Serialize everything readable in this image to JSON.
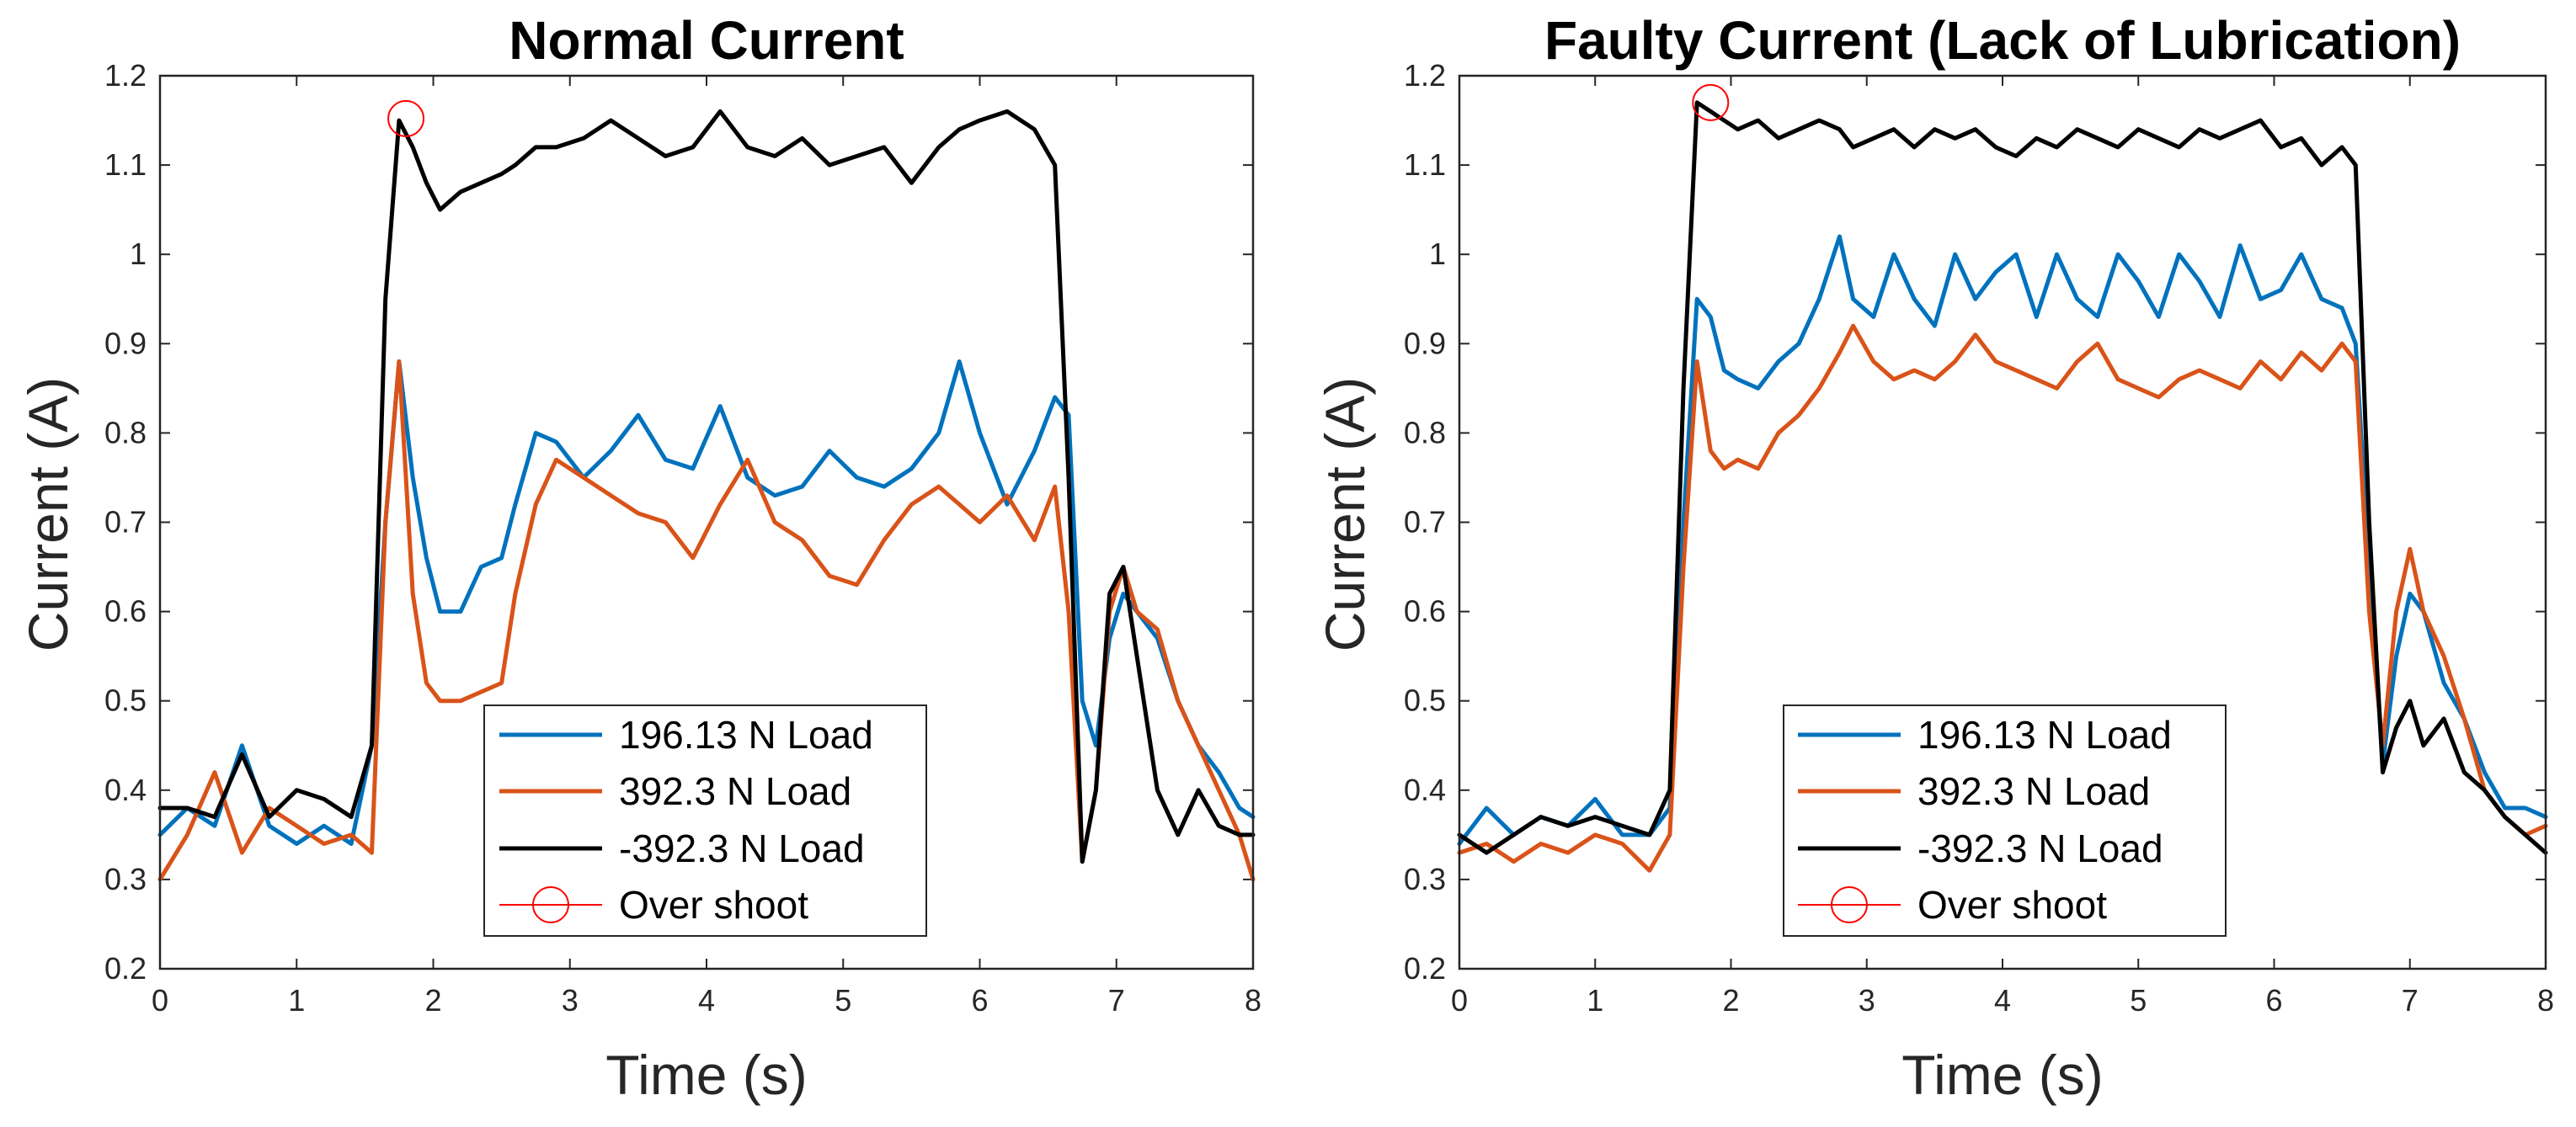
{
  "chart_data": [
    {
      "type": "line",
      "title": "Normal Current",
      "xlabel": "Time (s)",
      "ylabel": "Current (A)",
      "xlim": [
        0,
        8
      ],
      "ylim": [
        0.2,
        1.2
      ],
      "xticks": [
        "0",
        "1",
        "2",
        "3",
        "4",
        "5",
        "6",
        "7",
        "8"
      ],
      "yticks": [
        "0.2",
        "0.3",
        "0.4",
        "0.5",
        "0.6",
        "0.7",
        "0.8",
        "0.9",
        "1",
        "1.1",
        "1.2"
      ],
      "legend": [
        "196.13 N Load",
        "392.3 N Load",
        "-392.3 N Load",
        "Over shoot"
      ],
      "legend_position": "bottom-center",
      "series": [
        {
          "name": "196.13 N Load",
          "color": "#0072BD",
          "x": [
            0,
            0.2,
            0.4,
            0.6,
            0.8,
            1.0,
            1.2,
            1.4,
            1.55,
            1.65,
            1.75,
            1.85,
            1.95,
            2.05,
            2.2,
            2.35,
            2.5,
            2.6,
            2.75,
            2.9,
            3.1,
            3.3,
            3.5,
            3.7,
            3.9,
            4.1,
            4.3,
            4.5,
            4.7,
            4.9,
            5.1,
            5.3,
            5.5,
            5.7,
            5.85,
            6.0,
            6.2,
            6.4,
            6.55,
            6.65,
            6.75,
            6.85,
            6.95,
            7.05,
            7.15,
            7.3,
            7.45,
            7.6,
            7.75,
            7.9,
            8.0
          ],
          "values": [
            0.35,
            0.38,
            0.36,
            0.45,
            0.36,
            0.34,
            0.36,
            0.34,
            0.45,
            0.7,
            0.88,
            0.75,
            0.66,
            0.6,
            0.6,
            0.65,
            0.66,
            0.72,
            0.8,
            0.79,
            0.75,
            0.78,
            0.82,
            0.77,
            0.76,
            0.83,
            0.75,
            0.73,
            0.74,
            0.78,
            0.75,
            0.74,
            0.76,
            0.8,
            0.88,
            0.8,
            0.72,
            0.78,
            0.84,
            0.82,
            0.5,
            0.45,
            0.57,
            0.62,
            0.6,
            0.57,
            0.5,
            0.45,
            0.42,
            0.38,
            0.37
          ]
        },
        {
          "name": "392.3 N Load",
          "color": "#D95319",
          "x": [
            0,
            0.2,
            0.4,
            0.6,
            0.8,
            1.0,
            1.2,
            1.4,
            1.55,
            1.65,
            1.75,
            1.85,
            1.95,
            2.05,
            2.2,
            2.35,
            2.5,
            2.6,
            2.75,
            2.9,
            3.1,
            3.3,
            3.5,
            3.7,
            3.9,
            4.1,
            4.3,
            4.5,
            4.7,
            4.9,
            5.1,
            5.3,
            5.5,
            5.7,
            5.85,
            6.0,
            6.2,
            6.4,
            6.55,
            6.65,
            6.75,
            6.85,
            6.95,
            7.05,
            7.15,
            7.3,
            7.45,
            7.6,
            7.75,
            7.9,
            8.0
          ],
          "values": [
            0.3,
            0.35,
            0.42,
            0.33,
            0.38,
            0.36,
            0.34,
            0.35,
            0.33,
            0.7,
            0.88,
            0.62,
            0.52,
            0.5,
            0.5,
            0.51,
            0.52,
            0.62,
            0.72,
            0.77,
            0.75,
            0.73,
            0.71,
            0.7,
            0.66,
            0.72,
            0.77,
            0.7,
            0.68,
            0.64,
            0.63,
            0.68,
            0.72,
            0.74,
            0.72,
            0.7,
            0.73,
            0.68,
            0.74,
            0.6,
            0.32,
            0.4,
            0.6,
            0.65,
            0.6,
            0.58,
            0.5,
            0.45,
            0.4,
            0.35,
            0.3
          ]
        },
        {
          "name": "-392.3 N Load",
          "color": "#000000",
          "x": [
            0,
            0.2,
            0.4,
            0.6,
            0.8,
            1.0,
            1.2,
            1.4,
            1.55,
            1.65,
            1.75,
            1.85,
            1.95,
            2.05,
            2.2,
            2.35,
            2.5,
            2.6,
            2.75,
            2.9,
            3.1,
            3.3,
            3.5,
            3.7,
            3.9,
            4.1,
            4.3,
            4.5,
            4.7,
            4.9,
            5.1,
            5.3,
            5.5,
            5.7,
            5.85,
            6.0,
            6.2,
            6.4,
            6.55,
            6.65,
            6.75,
            6.85,
            6.95,
            7.05,
            7.15,
            7.3,
            7.45,
            7.6,
            7.75,
            7.9,
            8.0
          ],
          "values": [
            0.38,
            0.38,
            0.37,
            0.44,
            0.37,
            0.4,
            0.39,
            0.37,
            0.45,
            0.95,
            1.15,
            1.12,
            1.08,
            1.05,
            1.07,
            1.08,
            1.09,
            1.1,
            1.12,
            1.12,
            1.13,
            1.15,
            1.13,
            1.11,
            1.12,
            1.16,
            1.12,
            1.11,
            1.13,
            1.1,
            1.11,
            1.12,
            1.08,
            1.12,
            1.14,
            1.15,
            1.16,
            1.14,
            1.1,
            0.75,
            0.32,
            0.4,
            0.62,
            0.65,
            0.55,
            0.4,
            0.35,
            0.4,
            0.36,
            0.35,
            0.35
          ]
        }
      ],
      "overshoot": {
        "x": 1.8,
        "y": 1.152,
        "label": "Over shoot",
        "color": "#FF0000"
      }
    },
    {
      "type": "line",
      "title": "Faulty Current (Lack of Lubrication)",
      "xlabel": "Time (s)",
      "ylabel": "Current (A)",
      "xlim": [
        0,
        8
      ],
      "ylim": [
        0.2,
        1.2
      ],
      "xticks": [
        "0",
        "1",
        "2",
        "3",
        "4",
        "5",
        "6",
        "7",
        "8"
      ],
      "yticks": [
        "0.2",
        "0.3",
        "0.4",
        "0.5",
        "0.6",
        "0.7",
        "0.8",
        "0.9",
        "1",
        "1.1",
        "1.2"
      ],
      "legend": [
        "196.13 N Load",
        "392.3 N Load",
        "-392.3 N Load",
        "Over shoot"
      ],
      "legend_position": "bottom-center",
      "series": [
        {
          "name": "196.13 N Load",
          "color": "#0072BD",
          "x": [
            0,
            0.2,
            0.4,
            0.6,
            0.8,
            1.0,
            1.2,
            1.4,
            1.55,
            1.65,
            1.75,
            1.85,
            1.95,
            2.05,
            2.2,
            2.35,
            2.5,
            2.65,
            2.8,
            2.9,
            3.05,
            3.2,
            3.35,
            3.5,
            3.65,
            3.8,
            3.95,
            4.1,
            4.25,
            4.4,
            4.55,
            4.7,
            4.85,
            5.0,
            5.15,
            5.3,
            5.45,
            5.6,
            5.75,
            5.9,
            6.05,
            6.2,
            6.35,
            6.5,
            6.6,
            6.7,
            6.8,
            6.9,
            7.0,
            7.1,
            7.25,
            7.4,
            7.55,
            7.7,
            7.85,
            8.0
          ],
          "values": [
            0.34,
            0.38,
            0.35,
            0.37,
            0.36,
            0.39,
            0.35,
            0.35,
            0.38,
            0.7,
            0.95,
            0.93,
            0.87,
            0.86,
            0.85,
            0.88,
            0.9,
            0.95,
            1.02,
            0.95,
            0.93,
            1.0,
            0.95,
            0.92,
            1.0,
            0.95,
            0.98,
            1.0,
            0.93,
            1.0,
            0.95,
            0.93,
            1.0,
            0.97,
            0.93,
            1.0,
            0.97,
            0.93,
            1.01,
            0.95,
            0.96,
            1.0,
            0.95,
            0.94,
            0.9,
            0.65,
            0.43,
            0.55,
            0.62,
            0.6,
            0.52,
            0.48,
            0.42,
            0.38,
            0.38,
            0.37
          ]
        },
        {
          "name": "392.3 N Load",
          "color": "#D95319",
          "x": [
            0,
            0.2,
            0.4,
            0.6,
            0.8,
            1.0,
            1.2,
            1.4,
            1.55,
            1.65,
            1.75,
            1.85,
            1.95,
            2.05,
            2.2,
            2.35,
            2.5,
            2.65,
            2.8,
            2.9,
            3.05,
            3.2,
            3.35,
            3.5,
            3.65,
            3.8,
            3.95,
            4.1,
            4.25,
            4.4,
            4.55,
            4.7,
            4.85,
            5.0,
            5.15,
            5.3,
            5.45,
            5.6,
            5.75,
            5.9,
            6.05,
            6.2,
            6.35,
            6.5,
            6.6,
            6.7,
            6.8,
            6.9,
            7.0,
            7.1,
            7.25,
            7.4,
            7.55,
            7.7,
            7.85,
            8.0
          ],
          "values": [
            0.33,
            0.34,
            0.32,
            0.34,
            0.33,
            0.35,
            0.34,
            0.31,
            0.35,
            0.65,
            0.88,
            0.78,
            0.76,
            0.77,
            0.76,
            0.8,
            0.82,
            0.85,
            0.89,
            0.92,
            0.88,
            0.86,
            0.87,
            0.86,
            0.88,
            0.91,
            0.88,
            0.87,
            0.86,
            0.85,
            0.88,
            0.9,
            0.86,
            0.85,
            0.84,
            0.86,
            0.87,
            0.86,
            0.85,
            0.88,
            0.86,
            0.89,
            0.87,
            0.9,
            0.88,
            0.6,
            0.45,
            0.6,
            0.67,
            0.6,
            0.55,
            0.48,
            0.4,
            0.37,
            0.35,
            0.36
          ]
        },
        {
          "name": "-392.3 N Load",
          "color": "#000000",
          "x": [
            0,
            0.2,
            0.4,
            0.6,
            0.8,
            1.0,
            1.2,
            1.4,
            1.55,
            1.65,
            1.75,
            1.85,
            1.95,
            2.05,
            2.2,
            2.35,
            2.5,
            2.65,
            2.8,
            2.9,
            3.05,
            3.2,
            3.35,
            3.5,
            3.65,
            3.8,
            3.95,
            4.1,
            4.25,
            4.4,
            4.55,
            4.7,
            4.85,
            5.0,
            5.15,
            5.3,
            5.45,
            5.6,
            5.75,
            5.9,
            6.05,
            6.2,
            6.35,
            6.5,
            6.6,
            6.7,
            6.8,
            6.9,
            7.0,
            7.1,
            7.25,
            7.4,
            7.55,
            7.7,
            7.85,
            8.0
          ],
          "values": [
            0.35,
            0.33,
            0.35,
            0.37,
            0.36,
            0.37,
            0.36,
            0.35,
            0.4,
            0.85,
            1.17,
            1.16,
            1.15,
            1.14,
            1.15,
            1.13,
            1.14,
            1.15,
            1.14,
            1.12,
            1.13,
            1.14,
            1.12,
            1.14,
            1.13,
            1.14,
            1.12,
            1.11,
            1.13,
            1.12,
            1.14,
            1.13,
            1.12,
            1.14,
            1.13,
            1.12,
            1.14,
            1.13,
            1.14,
            1.15,
            1.12,
            1.13,
            1.1,
            1.12,
            1.1,
            0.7,
            0.42,
            0.47,
            0.5,
            0.45,
            0.48,
            0.42,
            0.4,
            0.37,
            0.35,
            0.33
          ]
        }
      ],
      "overshoot": {
        "x": 1.85,
        "y": 1.17,
        "label": "Over shoot",
        "color": "#FF0000"
      }
    }
  ]
}
